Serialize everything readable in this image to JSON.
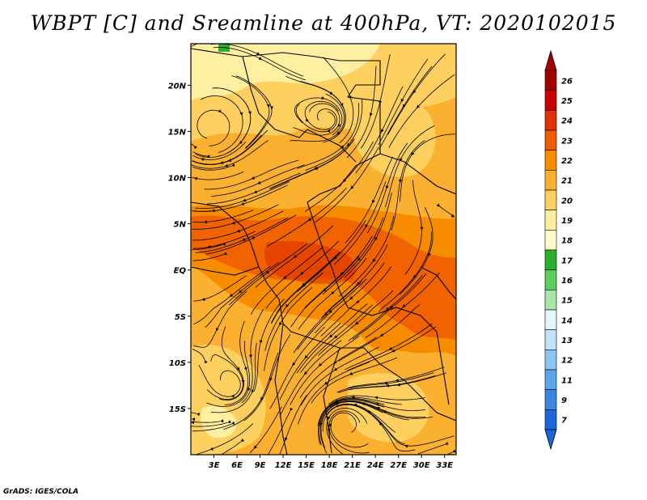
{
  "title": "WBPT [C] and Sreamline at 400hPa, VT: 2020102015",
  "credit": "GrADS: IGES/COLA",
  "map": {
    "lat_labels": [
      "20N",
      "15N",
      "10N",
      "5N",
      "EQ",
      "5S",
      "10S",
      "15S"
    ],
    "lon_labels": [
      "3E",
      "6E",
      "9E",
      "12E",
      "15E",
      "18E",
      "21E",
      "24E",
      "27E",
      "30E",
      "33E"
    ],
    "lat_values": [
      20,
      15,
      10,
      5,
      0,
      -5,
      -10,
      -15
    ],
    "lon_values": [
      3,
      6,
      9,
      12,
      15,
      18,
      21,
      24,
      27,
      30,
      33
    ],
    "lat_range": [
      -20,
      24.5
    ],
    "lon_range": [
      0,
      34.5
    ]
  },
  "colorbar": {
    "labels": [
      "26",
      "25",
      "24",
      "23",
      "22",
      "21",
      "20",
      "19",
      "18",
      "17",
      "16",
      "15",
      "14",
      "13",
      "12",
      "11",
      "9",
      "7"
    ],
    "colors": [
      "#a50000",
      "#c80000",
      "#e03200",
      "#f05a00",
      "#f88c00",
      "#fbb030",
      "#fdd060",
      "#fef0a0",
      "#fffccc",
      "#2ab02a",
      "#5cce5c",
      "#a8e6a8",
      "#e6f6ff",
      "#c2e2fa",
      "#8ec6f2",
      "#5aa6ea",
      "#3a86e2",
      "#1a66da"
    ]
  }
}
